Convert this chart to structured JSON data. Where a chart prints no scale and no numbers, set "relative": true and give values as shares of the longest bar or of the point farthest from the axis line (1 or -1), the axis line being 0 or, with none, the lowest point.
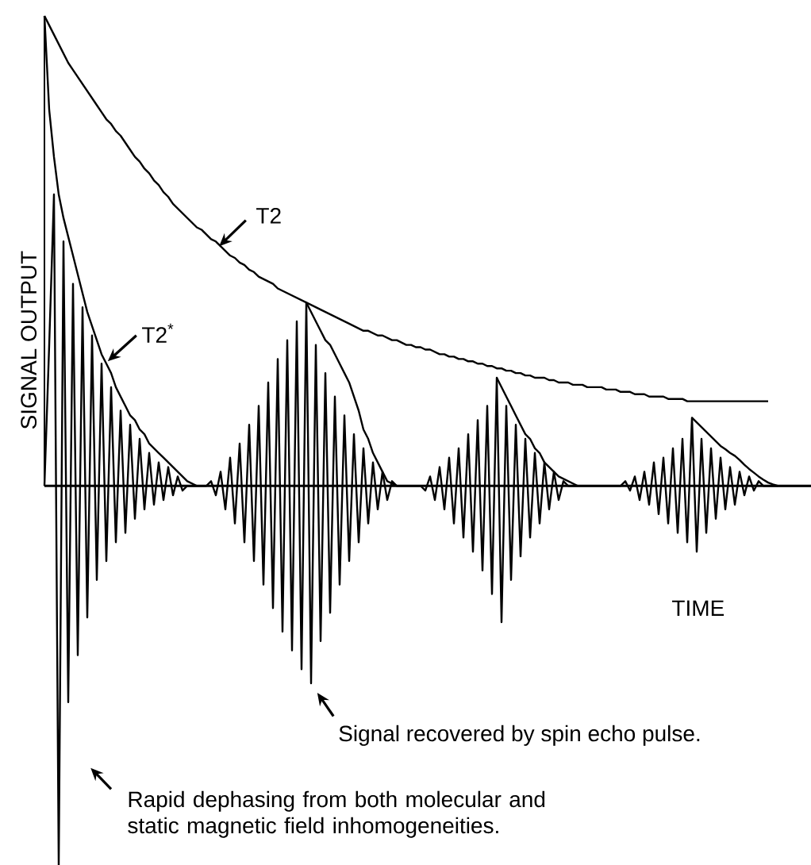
{
  "chart_data": {
    "type": "line",
    "xlabel": "TIME",
    "ylabel": "SIGNAL OUTPUT",
    "relative": true,
    "annotations": [
      "T2",
      "T2$^{*}$",
      "Signal recovered by spin echo pulse.",
      "Rapid dephasing from both molecular and static magnetic field inhomogeneities."
    ],
    "categories": [
      null,
      null,
      null,
      null,
      null,
      null,
      null,
      null,
      null,
      null,
      null,
      null,
      null,
      null,
      null,
      null,
      null,
      null,
      null,
      null,
      null,
      null,
      null,
      null,
      null,
      null,
      null,
      null,
      null,
      null,
      null,
      null,
      null,
      null,
      null,
      null,
      null,
      null,
      null,
      null,
      null,
      null,
      null,
      null,
      null,
      null,
      null,
      null,
      null,
      null,
      null,
      null,
      null,
      null,
      null,
      null,
      null,
      null,
      null,
      null,
      null,
      null,
      null,
      null,
      null,
      null,
      null,
      null,
      null,
      null,
      null,
      null,
      null,
      null,
      null,
      null,
      null,
      null,
      null,
      null,
      null,
      null,
      null,
      null,
      null,
      null,
      null,
      null,
      null,
      null,
      null,
      null,
      null,
      null,
      null,
      null,
      null,
      null,
      null,
      null,
      null,
      null,
      null,
      null,
      null,
      null,
      null,
      null,
      null,
      null,
      null,
      null,
      null,
      null,
      null,
      null,
      null,
      null,
      null,
      null,
      null,
      null,
      null,
      null,
      null,
      null,
      null,
      null,
      null,
      null,
      null,
      null,
      null,
      null,
      null,
      null,
      null,
      null,
      null,
      null,
      null,
      null,
      null,
      null,
      null,
      null,
      null,
      null,
      null,
      null,
      null,
      null,
      null,
      null,
      null,
      null,
      null,
      null,
      null,
      null,
      null,
      null
    ],
    "series": [
      {
        "color": "#000000",
        "values": [
          1.0,
          0.98,
          0.96,
          0.94,
          0.92,
          0.9,
          0.885,
          0.87,
          0.855,
          0.84,
          0.825,
          0.81,
          0.795,
          0.78,
          0.77,
          0.755,
          0.745,
          0.73,
          0.715,
          0.7,
          0.69,
          0.675,
          0.665,
          0.65,
          0.64,
          0.625,
          0.615,
          0.6,
          0.59,
          0.58,
          0.57,
          0.56,
          0.55,
          0.545,
          0.535,
          0.525,
          0.52,
          0.51,
          0.5,
          0.49,
          0.485,
          0.475,
          0.47,
          0.46,
          0.455,
          0.445,
          0.44,
          0.435,
          0.43,
          0.42,
          0.415,
          0.41,
          0.405,
          0.4,
          0.395,
          0.39,
          0.385,
          0.38,
          0.375,
          0.37,
          0.365,
          0.36,
          0.355,
          0.35,
          0.345,
          0.34,
          0.335,
          0.33,
          0.33,
          0.325,
          0.32,
          0.32,
          0.315,
          0.31,
          0.31,
          0.305,
          0.3,
          0.3,
          0.295,
          0.295,
          0.29,
          0.29,
          0.285,
          0.28,
          0.28,
          0.275,
          0.275,
          0.27,
          0.27,
          0.265,
          0.265,
          0.26,
          0.26,
          0.255,
          0.255,
          0.25,
          0.25,
          0.245,
          0.245,
          0.24,
          0.24,
          0.235,
          0.235,
          0.23,
          0.23,
          0.23,
          0.225,
          0.225,
          0.22,
          0.22,
          0.22,
          0.215,
          0.215,
          0.215,
          0.21,
          0.21,
          0.21,
          0.21,
          0.205,
          0.205,
          0.205,
          0.2,
          0.2,
          0.2,
          0.195,
          0.195,
          0.195,
          0.19,
          0.19,
          0.19,
          0.19,
          0.185,
          0.185,
          0.185,
          0.185,
          0.18,
          0.18,
          0.18,
          0.18,
          0.18,
          0.18,
          0.18,
          0.18,
          0.18,
          0.18,
          0.18,
          0.18,
          0.18,
          0.18,
          0.18,
          0.18,
          0.18,
          0.18,
          null,
          null,
          null,
          null,
          null,
          null,
          null,
          null,
          null
        ]
      },
      {
        "color": "#000000",
        "values": [
          1.0,
          0.8,
          0.7,
          0.62,
          0.57,
          0.53,
          0.49,
          0.45,
          0.41,
          0.37,
          0.34,
          0.31,
          0.28,
          0.26,
          0.24,
          0.21,
          0.19,
          0.17,
          0.15,
          0.14,
          0.12,
          0.11,
          0.09,
          0.08,
          0.07,
          0.06,
          0.05,
          0.04,
          0.03,
          0.02,
          0.01,
          0.005,
          0,
          null,
          null,
          null,
          null,
          null,
          null,
          null,
          null,
          null,
          null,
          null,
          null,
          null,
          null,
          null,
          null,
          null,
          null,
          null,
          null,
          null,
          null,
          0.39,
          0.37,
          0.35,
          0.33,
          0.31,
          0.3,
          0.28,
          0.26,
          0.24,
          0.22,
          0.19,
          0.16,
          0.12,
          0.1,
          0.07,
          0.05,
          0.03,
          0.01,
          0.005,
          0,
          null,
          null,
          null,
          null,
          null,
          null,
          null,
          null,
          null,
          null,
          null,
          null,
          null,
          null,
          null,
          null,
          null,
          null,
          null,
          null,
          0.23,
          0.21,
          0.19,
          0.17,
          0.15,
          0.13,
          0.11,
          0.1,
          0.08,
          0.07,
          0.05,
          0.04,
          0.03,
          0.02,
          0.015,
          0.01,
          0.005,
          0,
          null,
          null,
          null,
          null,
          null,
          null,
          null,
          null,
          null,
          null,
          null,
          null,
          null,
          null,
          null,
          null,
          null,
          null,
          null,
          null,
          null,
          null,
          null,
          0.145,
          0.135,
          0.125,
          0.115,
          0.105,
          0.095,
          0.085,
          0.078,
          0.07,
          0.064,
          0.055,
          0.045,
          0.036,
          0.028,
          0.02,
          0.013,
          0.007,
          0.003,
          0,
          null,
          null,
          null,
          null,
          null,
          null,
          null
        ]
      },
      {
        "color": "#000000",
        "values": [
          0,
          0.3,
          0.62,
          -0.81,
          0.52,
          -0.46,
          0.43,
          -0.36,
          0.38,
          -0.28,
          0.32,
          -0.2,
          0.26,
          -0.16,
          0.21,
          -0.12,
          0.16,
          -0.1,
          0.13,
          -0.07,
          0.1,
          -0.05,
          0.07,
          -0.04,
          0.05,
          -0.03,
          0.04,
          -0.02,
          0.02,
          -0.01,
          0,
          0,
          0,
          0,
          0,
          0.01,
          -0.02,
          0.03,
          -0.05,
          0.06,
          -0.08,
          0.09,
          -0.12,
          0.13,
          -0.16,
          0.17,
          -0.21,
          0.22,
          -0.26,
          0.27,
          -0.31,
          0.31,
          -0.35,
          0.35,
          -0.39,
          0.39,
          -0.42,
          0.3,
          -0.33,
          0.24,
          -0.27,
          0.19,
          -0.21,
          0.15,
          -0.16,
          0.11,
          -0.12,
          0.08,
          -0.08,
          0.05,
          -0.05,
          0.03,
          -0.03,
          0.01,
          0,
          0,
          0,
          0,
          0,
          0,
          -0.01,
          0.02,
          -0.03,
          0.04,
          -0.05,
          0.06,
          -0.08,
          0.08,
          -0.11,
          0.11,
          -0.14,
          0.14,
          -0.18,
          0.17,
          -0.23,
          0.23,
          -0.29,
          0.17,
          -0.2,
          0.13,
          -0.15,
          0.1,
          -0.11,
          0.07,
          -0.08,
          0.05,
          -0.05,
          0.03,
          -0.03,
          0.01,
          0,
          0,
          0,
          0,
          0,
          0,
          0,
          0,
          0,
          0,
          0,
          0,
          0.01,
          -0.01,
          0.02,
          -0.03,
          0.03,
          -0.04,
          0.05,
          -0.06,
          0.06,
          -0.08,
          0.08,
          -0.1,
          0.1,
          -0.12,
          0.145,
          -0.14,
          0.1,
          -0.1,
          0.08,
          -0.07,
          0.06,
          -0.05,
          0.04,
          -0.04,
          0.03,
          -0.02,
          0.02,
          -0.01,
          0.01,
          0,
          0,
          0,
          0,
          0,
          0,
          0,
          0,
          0,
          0,
          0
        ]
      }
    ]
  }
}
